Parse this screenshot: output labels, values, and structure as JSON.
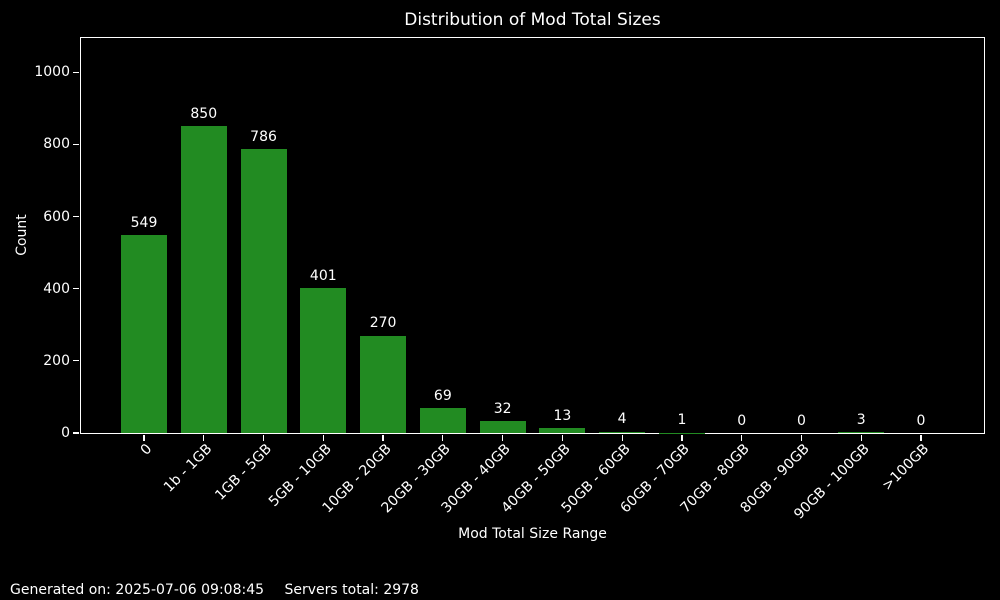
{
  "chart_data": {
    "type": "bar",
    "title": "Distribution of Mod Total Sizes",
    "xlabel": "Mod Total Size Range",
    "ylabel": "Count",
    "categories": [
      "0",
      "1b - 1GB",
      "1GB - 5GB",
      "5GB - 10GB",
      "10GB - 20GB",
      "20GB - 30GB",
      "30GB - 40GB",
      "40GB - 50GB",
      "50GB - 60GB",
      "60GB - 70GB",
      "70GB - 80GB",
      "80GB - 90GB",
      "90GB - 100GB",
      ">100GB"
    ],
    "values": [
      549,
      850,
      786,
      401,
      270,
      69,
      32,
      13,
      4,
      1,
      0,
      0,
      3,
      0
    ],
    "bar_value_labels": [
      "549",
      "850",
      "786",
      "401",
      "270",
      "69",
      "32",
      "13",
      "4",
      "1",
      "0",
      "0",
      "3",
      "0"
    ],
    "yticks": [
      0,
      200,
      400,
      600,
      800,
      1000
    ],
    "ylim": [
      0,
      1095
    ],
    "x_tick_rotation": 45,
    "grid": false,
    "legend": null,
    "colors": {
      "bar": "#228B22",
      "background": "#000000",
      "text": "#ffffff",
      "spine": "#ffffff"
    }
  },
  "footer": {
    "generated": "Generated on: 2025-07-06 09:08:45",
    "servers": "Servers total: 2978"
  }
}
